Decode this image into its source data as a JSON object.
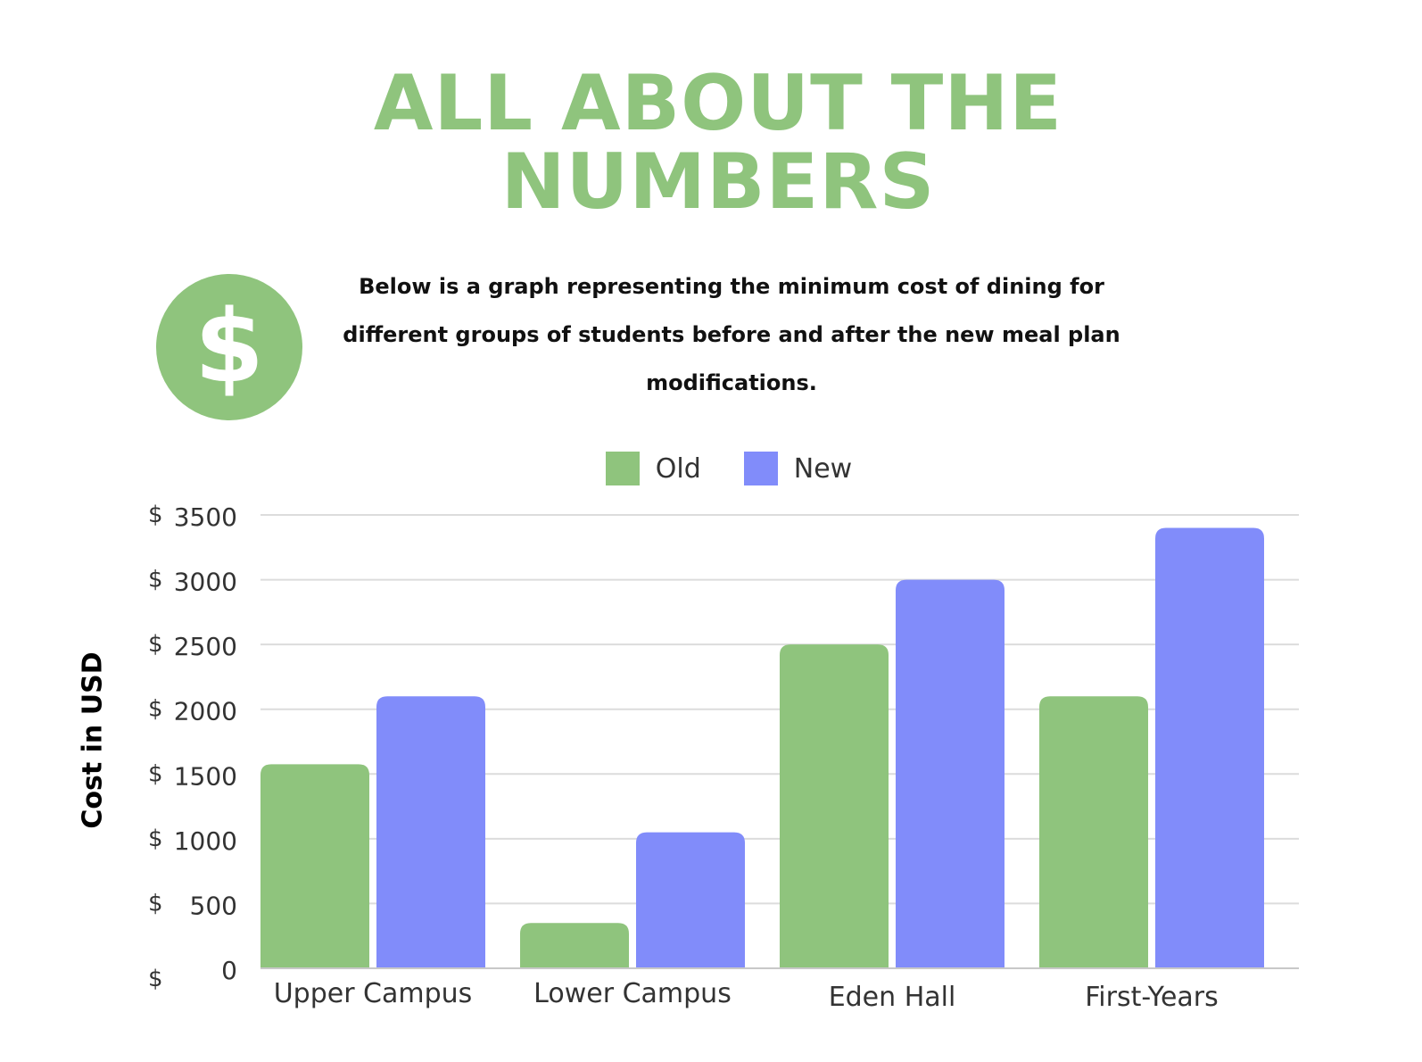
{
  "header": {
    "title_line1": "ALL ABOUT THE",
    "title_line2": "NUMBERS",
    "icon": "dollar-coin-icon",
    "icon_glyph": "$"
  },
  "description": "Below is a graph representing the minimum cost of dining for different groups of students before and after the new meal plan modifications.",
  "chart_data": {
    "type": "bar",
    "title": "",
    "xlabel": "",
    "ylabel": "Cost in USD",
    "categories": [
      "Upper Campus",
      "Lower Campus",
      "Eden Hall",
      "First-Years"
    ],
    "series": [
      {
        "name": "Old",
        "color": "#8fc47d",
        "values": [
          1575,
          350,
          2500,
          2100
        ]
      },
      {
        "name": "New",
        "color": "#818cfa",
        "values": [
          2100,
          1050,
          3000,
          3400
        ]
      }
    ],
    "ylim": [
      0,
      3500
    ],
    "yticks": [
      0,
      500,
      1000,
      1500,
      2000,
      2500,
      3000,
      3500
    ],
    "ytick_prefix": "$",
    "grid": true,
    "legend_position": "top-center"
  }
}
